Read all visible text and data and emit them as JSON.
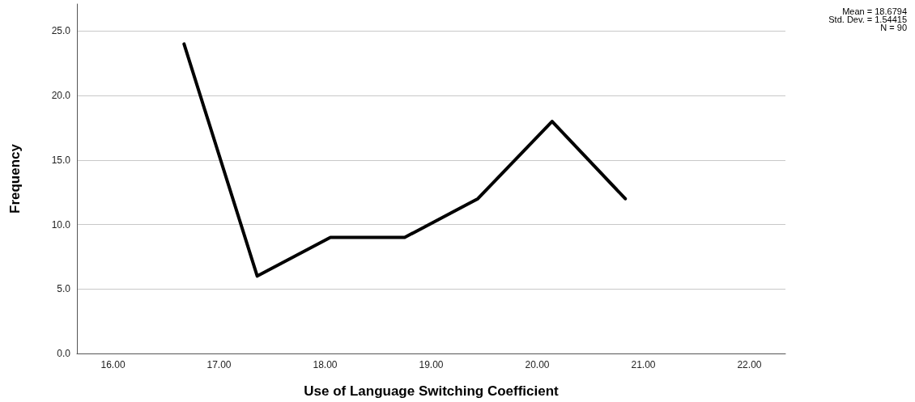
{
  "chart_data": {
    "type": "line",
    "xlabel": "Use of Language Switching Coefficient",
    "ylabel": "Frequency",
    "x": [
      16.67,
      17.36,
      18.05,
      18.75,
      19.44,
      20.14,
      20.83
    ],
    "series": [
      {
        "color": "#000000",
        "values": [
          24,
          6,
          9,
          9,
          12,
          18,
          12
        ]
      }
    ],
    "xlim": [
      15.66,
      22.34
    ],
    "xticks": [
      {
        "value": 16,
        "label": "16.00"
      },
      {
        "value": 17,
        "label": "17.00"
      },
      {
        "value": 18,
        "label": "18.00"
      },
      {
        "value": 19,
        "label": "19.00"
      },
      {
        "value": 20,
        "label": "20.00"
      },
      {
        "value": 21,
        "label": "21.00"
      },
      {
        "value": 22,
        "label": "22.00"
      }
    ],
    "ylim": [
      0,
      27.1
    ],
    "yticks": [
      {
        "value": 0,
        "label": "0.0"
      },
      {
        "value": 5,
        "label": "5.0"
      },
      {
        "value": 10,
        "label": "10.0"
      },
      {
        "value": 15,
        "label": "15.0"
      },
      {
        "value": 20,
        "label": "20.0"
      },
      {
        "value": 25,
        "label": "25.0"
      }
    ],
    "grid": "y",
    "marker": "none",
    "line_style": "solid",
    "annotations": [
      "Mean = 18.6794",
      "Std. Dev. = 1.54415",
      "N = 90"
    ]
  }
}
